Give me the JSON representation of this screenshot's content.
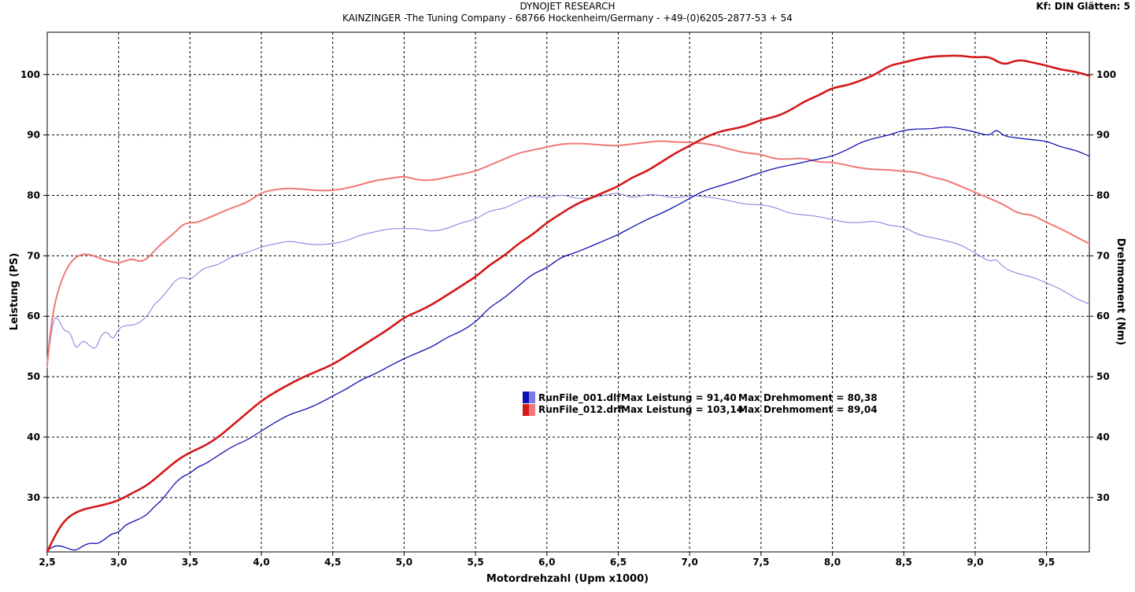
{
  "header": {
    "title": "DYNOJET RESEARCH",
    "subtitle": "KAINZINGER -The Tuning Company - 68766 Hockenheim/Germany - +49-(0)6205-2877-53 + 54",
    "corner_info": "Kf: DIN  Glätten: 5"
  },
  "chart_data": {
    "type": "line",
    "xlabel": "Motordrehzahl (Upm x1000)",
    "ylabel_left": "Leistung (PS)",
    "ylabel_right": "Drehmoment (Nm)",
    "xlim": [
      2.5,
      9.8
    ],
    "ylim": [
      21,
      107
    ],
    "x_ticks": [
      2.5,
      3.0,
      3.5,
      4.0,
      4.5,
      5.0,
      5.5,
      6.0,
      6.5,
      7.0,
      7.5,
      8.0,
      8.5,
      9.0,
      9.5
    ],
    "x_tick_labels": [
      "2,5",
      "3,0",
      "3,5",
      "4,0",
      "4,5",
      "5,0",
      "5,5",
      "6,0",
      "6,5",
      "7,0",
      "7,5",
      "8,0",
      "8,5",
      "9,0",
      "9,5"
    ],
    "y_ticks": [
      30,
      40,
      50,
      60,
      70,
      80,
      90,
      100
    ],
    "y_tick_labels": [
      "30",
      "40",
      "50",
      "60",
      "70",
      "80",
      "90",
      "100"
    ],
    "grid": true,
    "colors": {
      "run1_power": "#1010b0",
      "run1_torque": "#7b7be0",
      "run2_power": "#d41818",
      "run2_torque": "#f07878"
    },
    "legend": {
      "placement": "center",
      "entries": [
        {
          "file": "RunFile_001.dlf",
          "max_power_label": "Max Leistung = 91,40",
          "max_torque_label": "Max Drehmoment = 80,38"
        },
        {
          "file": "RunFile_012.drf",
          "max_power_label": "Max Leistung = 103,14",
          "max_torque_label": "Max Drehmoment = 89,04"
        }
      ]
    },
    "series": [
      {
        "key": "run1_power",
        "x": [
          2.5,
          2.55,
          2.6,
          2.65,
          2.7,
          2.75,
          2.8,
          2.85,
          2.9,
          2.95,
          3.0,
          3.05,
          3.1,
          3.15,
          3.2,
          3.25,
          3.3,
          3.35,
          3.4,
          3.45,
          3.5,
          3.55,
          3.6,
          3.65,
          3.7,
          3.8,
          3.9,
          4.0,
          4.1,
          4.2,
          4.3,
          4.4,
          4.5,
          4.6,
          4.7,
          4.8,
          4.9,
          5.0,
          5.1,
          5.2,
          5.3,
          5.4,
          5.5,
          5.6,
          5.7,
          5.8,
          5.9,
          6.0,
          6.1,
          6.2,
          6.3,
          6.4,
          6.5,
          6.6,
          6.7,
          6.8,
          6.9,
          7.0,
          7.1,
          7.2,
          7.3,
          7.4,
          7.5,
          7.6,
          7.7,
          7.8,
          7.9,
          8.0,
          8.1,
          8.2,
          8.3,
          8.4,
          8.5,
          8.6,
          8.7,
          8.8,
          8.9,
          9.0,
          9.1,
          9.15,
          9.2,
          9.3,
          9.4,
          9.5,
          9.6,
          9.7,
          9.8
        ],
        "values": [
          21.2,
          22.0,
          22.0,
          21.5,
          21.2,
          22.0,
          22.5,
          22.3,
          23.0,
          24.0,
          24.2,
          25.5,
          26.0,
          26.5,
          27.2,
          28.5,
          29.5,
          31.0,
          32.5,
          33.5,
          34.0,
          35.0,
          35.5,
          36.2,
          37.0,
          38.5,
          39.5,
          41.0,
          42.5,
          43.8,
          44.5,
          45.5,
          46.8,
          48.0,
          49.5,
          50.5,
          51.8,
          53.0,
          54.0,
          55.0,
          56.5,
          57.5,
          59.0,
          61.5,
          63.0,
          65.0,
          67.0,
          68.0,
          69.8,
          70.5,
          71.5,
          72.5,
          73.5,
          74.8,
          76.0,
          77.0,
          78.2,
          79.5,
          80.8,
          81.5,
          82.2,
          83.0,
          83.8,
          84.5,
          85.0,
          85.5,
          86.0,
          86.5,
          87.5,
          88.8,
          89.5,
          90.0,
          90.8,
          91.0,
          91.0,
          91.4,
          91.0,
          90.5,
          89.8,
          91.0,
          89.8,
          89.5,
          89.2,
          89.0,
          88.0,
          87.5,
          86.5
        ]
      },
      {
        "key": "run1_torque",
        "x": [
          2.5,
          2.52,
          2.55,
          2.58,
          2.62,
          2.66,
          2.7,
          2.73,
          2.76,
          2.8,
          2.84,
          2.88,
          2.92,
          2.96,
          3.0,
          3.05,
          3.1,
          3.15,
          3.2,
          3.25,
          3.3,
          3.35,
          3.4,
          3.45,
          3.5,
          3.55,
          3.6,
          3.7,
          3.8,
          3.9,
          4.0,
          4.1,
          4.2,
          4.3,
          4.4,
          4.5,
          4.6,
          4.7,
          4.8,
          4.9,
          5.0,
          5.1,
          5.2,
          5.3,
          5.4,
          5.5,
          5.6,
          5.7,
          5.8,
          5.9,
          6.0,
          6.1,
          6.2,
          6.3,
          6.4,
          6.5,
          6.6,
          6.7,
          6.8,
          6.9,
          7.0,
          7.1,
          7.2,
          7.3,
          7.4,
          7.5,
          7.6,
          7.7,
          7.8,
          7.9,
          8.0,
          8.1,
          8.2,
          8.3,
          8.4,
          8.5,
          8.6,
          8.7,
          8.8,
          8.9,
          9.0,
          9.1,
          9.15,
          9.2,
          9.3,
          9.4,
          9.5,
          9.6,
          9.7,
          9.8
        ],
        "values": [
          51.5,
          56.0,
          60.0,
          59.5,
          57.5,
          57.5,
          54.5,
          55.5,
          56.0,
          55.0,
          54.5,
          57.0,
          57.5,
          56.0,
          58.0,
          58.5,
          58.5,
          59.0,
          60.0,
          62.0,
          63.0,
          64.5,
          66.0,
          66.5,
          66.0,
          67.0,
          68.0,
          68.5,
          70.0,
          70.5,
          71.5,
          72.0,
          72.5,
          72.0,
          71.8,
          72.0,
          72.5,
          73.5,
          74.0,
          74.5,
          74.5,
          74.5,
          74.0,
          74.5,
          75.5,
          76.0,
          77.5,
          77.8,
          79.0,
          80.0,
          79.5,
          80.2,
          79.5,
          79.5,
          80.0,
          80.5,
          79.5,
          80.2,
          80.0,
          79.5,
          80.0,
          79.8,
          79.5,
          79.0,
          78.5,
          78.5,
          78.0,
          77.0,
          76.8,
          76.5,
          76.0,
          75.5,
          75.5,
          75.8,
          75.0,
          74.8,
          73.5,
          73.0,
          72.5,
          71.8,
          70.5,
          69.0,
          69.5,
          68.0,
          67.0,
          66.5,
          65.5,
          64.5,
          63.0,
          62.0
        ]
      },
      {
        "key": "run2_power",
        "x": [
          2.5,
          2.55,
          2.6,
          2.65,
          2.7,
          2.75,
          2.8,
          2.9,
          3.0,
          3.1,
          3.2,
          3.3,
          3.4,
          3.5,
          3.6,
          3.7,
          3.8,
          3.9,
          4.0,
          4.1,
          4.2,
          4.3,
          4.4,
          4.5,
          4.6,
          4.7,
          4.8,
          4.9,
          5.0,
          5.1,
          5.2,
          5.3,
          5.4,
          5.5,
          5.6,
          5.7,
          5.8,
          5.9,
          6.0,
          6.1,
          6.2,
          6.3,
          6.4,
          6.5,
          6.6,
          6.7,
          6.8,
          6.9,
          7.0,
          7.1,
          7.2,
          7.3,
          7.4,
          7.5,
          7.6,
          7.7,
          7.8,
          7.9,
          8.0,
          8.1,
          8.2,
          8.3,
          8.4,
          8.5,
          8.6,
          8.7,
          8.8,
          8.9,
          9.0,
          9.1,
          9.2,
          9.3,
          9.4,
          9.5,
          9.6,
          9.7,
          9.8
        ],
        "values": [
          21.0,
          23.5,
          25.5,
          26.8,
          27.5,
          28.0,
          28.3,
          28.8,
          29.5,
          30.8,
          32.0,
          34.0,
          36.0,
          37.5,
          38.5,
          40.0,
          42.0,
          44.0,
          46.0,
          47.5,
          48.8,
          50.0,
          51.0,
          52.0,
          53.5,
          55.0,
          56.5,
          58.0,
          59.8,
          60.8,
          62.0,
          63.5,
          65.0,
          66.5,
          68.5,
          70.0,
          72.0,
          73.5,
          75.5,
          77.0,
          78.5,
          79.5,
          80.5,
          81.5,
          83.0,
          84.0,
          85.5,
          87.0,
          88.2,
          89.5,
          90.5,
          91.0,
          91.5,
          92.5,
          93.0,
          94.0,
          95.5,
          96.5,
          97.8,
          98.2,
          99.0,
          100.0,
          101.5,
          102.0,
          102.6,
          103.0,
          103.1,
          103.14,
          102.8,
          103.0,
          101.5,
          102.5,
          102.0,
          101.5,
          100.8,
          100.5,
          99.8
        ]
      },
      {
        "key": "run2_torque",
        "x": [
          2.5,
          2.52,
          2.55,
          2.6,
          2.65,
          2.7,
          2.75,
          2.8,
          2.85,
          2.9,
          2.95,
          3.0,
          3.05,
          3.1,
          3.15,
          3.2,
          3.25,
          3.3,
          3.35,
          3.4,
          3.45,
          3.5,
          3.55,
          3.6,
          3.7,
          3.8,
          3.9,
          4.0,
          4.1,
          4.2,
          4.3,
          4.4,
          4.5,
          4.6,
          4.7,
          4.8,
          4.9,
          5.0,
          5.1,
          5.2,
          5.3,
          5.4,
          5.5,
          5.6,
          5.7,
          5.8,
          5.9,
          6.0,
          6.1,
          6.2,
          6.3,
          6.4,
          6.5,
          6.6,
          6.7,
          6.8,
          6.9,
          7.0,
          7.1,
          7.2,
          7.3,
          7.4,
          7.5,
          7.6,
          7.7,
          7.8,
          7.9,
          8.0,
          8.1,
          8.2,
          8.3,
          8.4,
          8.5,
          8.6,
          8.7,
          8.8,
          8.9,
          9.0,
          9.1,
          9.2,
          9.3,
          9.4,
          9.5,
          9.6,
          9.7,
          9.8
        ],
        "values": [
          52.0,
          57.0,
          62.0,
          66.0,
          68.5,
          69.8,
          70.3,
          70.2,
          69.8,
          69.3,
          69.0,
          68.8,
          69.2,
          69.5,
          69.0,
          69.5,
          70.8,
          72.0,
          73.0,
          74.0,
          75.2,
          75.5,
          75.5,
          76.0,
          77.0,
          78.0,
          78.8,
          80.5,
          81.0,
          81.2,
          81.0,
          80.8,
          80.8,
          81.2,
          81.8,
          82.5,
          82.8,
          83.2,
          82.5,
          82.5,
          83.0,
          83.5,
          84.0,
          85.0,
          86.0,
          87.0,
          87.5,
          88.0,
          88.5,
          88.6,
          88.5,
          88.3,
          88.2,
          88.5,
          88.8,
          89.04,
          88.8,
          88.8,
          88.6,
          88.2,
          87.5,
          87.0,
          86.8,
          86.0,
          86.0,
          86.2,
          85.5,
          85.5,
          85.0,
          84.5,
          84.3,
          84.2,
          84.0,
          83.8,
          83.0,
          82.5,
          81.5,
          80.5,
          79.5,
          78.5,
          77.0,
          76.8,
          75.5,
          74.5,
          73.2,
          72.0
        ]
      }
    ]
  }
}
